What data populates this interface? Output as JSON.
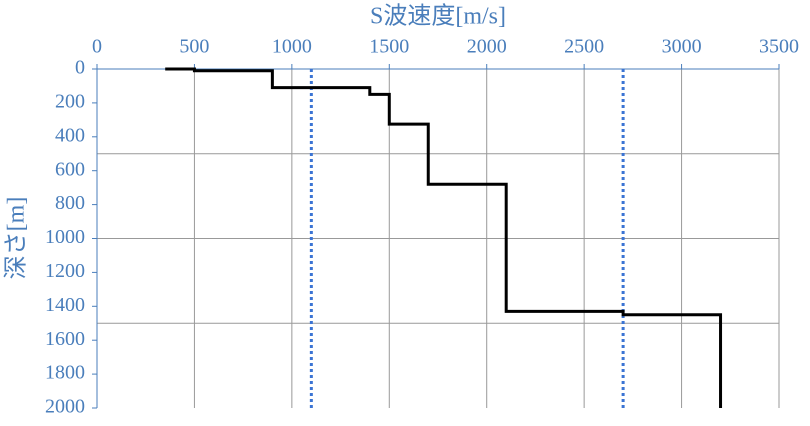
{
  "chart_data": {
    "type": "line",
    "xlabel": "S波速度[m/s]",
    "ylabel": "深さ[m]",
    "xlim": [
      0,
      3500
    ],
    "xticks": [
      0,
      500,
      1000,
      1500,
      2000,
      2500,
      3000,
      3500
    ],
    "ylim": [
      0,
      2000
    ],
    "yticks": [
      0,
      200,
      400,
      600,
      800,
      1000,
      1200,
      1400,
      1600,
      1800,
      2000
    ],
    "y_inverted": true,
    "x_axis_position": "top",
    "xgrid": true,
    "ygrid_lines": [
      500,
      1000,
      1500
    ],
    "series": [
      {
        "color": "#000000",
        "x": [
          350,
          500,
          500,
          900,
          900,
          1400,
          1400,
          1500,
          1500,
          1700,
          1700,
          2100,
          2100,
          2700,
          2700,
          3200,
          3200
        ],
        "values": [
          0,
          0,
          10,
          10,
          110,
          110,
          150,
          150,
          325,
          325,
          680,
          680,
          1430,
          1430,
          1450,
          1450,
          2000
        ]
      }
    ],
    "reference_lines": [
      {
        "x": 1100,
        "color": "#3b74d4"
      },
      {
        "x": 2700,
        "color": "#3b74d4"
      }
    ],
    "label_color": "#4a7ebb"
  }
}
